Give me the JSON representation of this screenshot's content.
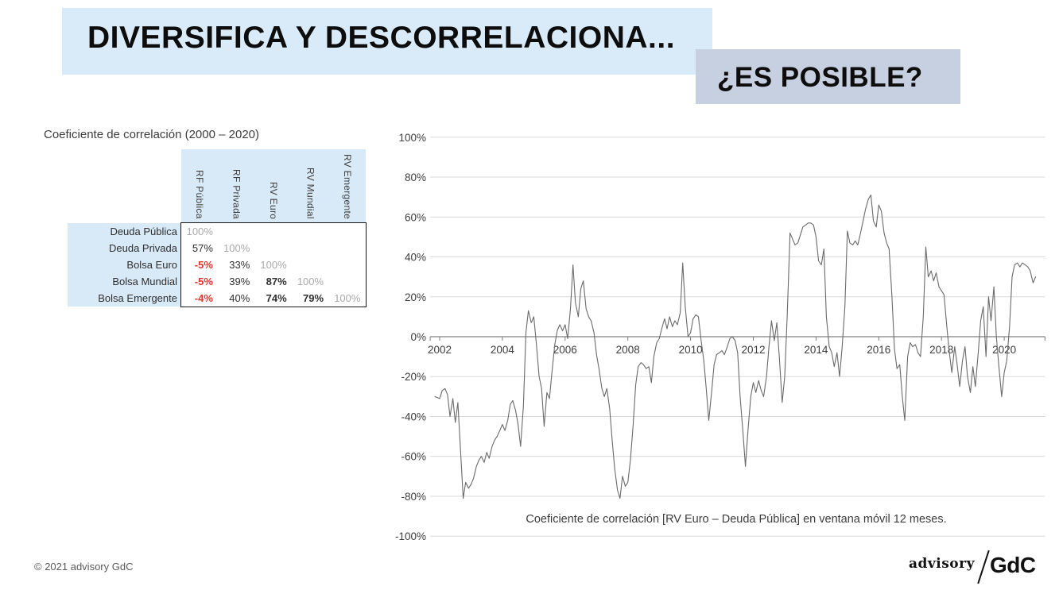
{
  "slide": {
    "title": "DIVERSIFICA Y DESCORRELACIONA...",
    "subtitle": "¿ES POSIBLE?",
    "footer_copyright": "© 2021 advisory GdC",
    "logo": {
      "advisory": "advisory",
      "gdc": "GdC"
    }
  },
  "colors": {
    "title_highlight": "#d9eaf8",
    "subtitle_highlight": "#c7d0e0",
    "table_blue": "#d8eaf8",
    "negative_red": "#e2352e",
    "diagonal_gray": "#a9a9a9",
    "line_gray": "#6a6a6a",
    "grid_gray": "#d9d9d9",
    "axis_gray": "#7f7f7f",
    "text_dark": "#3c3c3c"
  },
  "correlation_table": {
    "title": "Coeficiente de correlación (2000 – 2020)",
    "column_headers": [
      "RF Pública",
      "RF Privada",
      "RV Euro",
      "RV Mundial",
      "RV Emergente"
    ],
    "rows": [
      {
        "label": "Deuda Pública",
        "values": [
          "100%",
          "",
          "",
          "",
          ""
        ]
      },
      {
        "label": "Deuda Privada",
        "values": [
          "57%",
          "100%",
          "",
          "",
          ""
        ]
      },
      {
        "label": "Bolsa Euro",
        "values": [
          "-5%",
          "33%",
          "100%",
          "",
          ""
        ]
      },
      {
        "label": "Bolsa Mundial",
        "values": [
          "-5%",
          "39%",
          "87%",
          "100%",
          ""
        ]
      },
      {
        "label": "Bolsa Emergente",
        "values": [
          "-4%",
          "40%",
          "74%",
          "79%",
          "100%"
        ]
      }
    ]
  },
  "chart_data": {
    "type": "line",
    "title": "",
    "xlabel": "",
    "ylabel": "",
    "caption": "Coeficiente de correlación [RV Euro – Deuda Pública] en ventana móvil 12 meses.",
    "grid": true,
    "legend": "none",
    "xlim": [
      2001.85,
      2021.3
    ],
    "ylim": [
      -100,
      100
    ],
    "x_ticks": [
      2002,
      2004,
      2006,
      2008,
      2010,
      2012,
      2014,
      2016,
      2018,
      2020
    ],
    "x_tick_labels": [
      "2002",
      "2004",
      "2006",
      "2008",
      "2010",
      "2012",
      "2014",
      "2016",
      "2018",
      "2020"
    ],
    "y_ticks": [
      100,
      80,
      60,
      40,
      20,
      0,
      -20,
      -40,
      -60,
      -80,
      -100
    ],
    "y_tick_labels": [
      "100%",
      "80%",
      "60%",
      "40%",
      "20%",
      "0%",
      "-20%",
      "-40%",
      "-60%",
      "-80%",
      "-100%"
    ],
    "series": [
      {
        "name": "Coeficiente de correlación RV Euro – Deuda Pública, ventana móvil 12 meses",
        "color": "#6a6a6a",
        "points": [
          [
            2001.85,
            -30
          ],
          [
            2002.0,
            -31
          ],
          [
            2002.08,
            -27
          ],
          [
            2002.17,
            -26
          ],
          [
            2002.25,
            -29
          ],
          [
            2002.33,
            -40
          ],
          [
            2002.42,
            -31
          ],
          [
            2002.5,
            -43
          ],
          [
            2002.58,
            -33
          ],
          [
            2002.67,
            -58
          ],
          [
            2002.75,
            -81
          ],
          [
            2002.83,
            -73
          ],
          [
            2002.92,
            -76
          ],
          [
            2003.0,
            -74
          ],
          [
            2003.08,
            -71
          ],
          [
            2003.17,
            -65
          ],
          [
            2003.25,
            -62
          ],
          [
            2003.33,
            -60
          ],
          [
            2003.42,
            -63
          ],
          [
            2003.5,
            -58
          ],
          [
            2003.58,
            -61
          ],
          [
            2003.67,
            -55
          ],
          [
            2003.75,
            -52
          ],
          [
            2003.83,
            -50
          ],
          [
            2003.92,
            -47
          ],
          [
            2004.0,
            -44
          ],
          [
            2004.08,
            -47
          ],
          [
            2004.17,
            -42
          ],
          [
            2004.25,
            -34
          ],
          [
            2004.33,
            -32
          ],
          [
            2004.42,
            -37
          ],
          [
            2004.5,
            -44
          ],
          [
            2004.58,
            -55
          ],
          [
            2004.67,
            -35
          ],
          [
            2004.75,
            2
          ],
          [
            2004.83,
            13
          ],
          [
            2004.92,
            7
          ],
          [
            2005.0,
            10
          ],
          [
            2005.08,
            -3
          ],
          [
            2005.17,
            -20
          ],
          [
            2005.25,
            -26
          ],
          [
            2005.33,
            -45
          ],
          [
            2005.42,
            -28
          ],
          [
            2005.5,
            -31
          ],
          [
            2005.58,
            -18
          ],
          [
            2005.67,
            -4
          ],
          [
            2005.75,
            3
          ],
          [
            2005.83,
            6
          ],
          [
            2005.92,
            3
          ],
          [
            2006.0,
            6
          ],
          [
            2006.08,
            -1
          ],
          [
            2006.17,
            14
          ],
          [
            2006.25,
            36
          ],
          [
            2006.33,
            17
          ],
          [
            2006.42,
            10
          ],
          [
            2006.5,
            24
          ],
          [
            2006.58,
            28
          ],
          [
            2006.67,
            14
          ],
          [
            2006.75,
            10
          ],
          [
            2006.83,
            8
          ],
          [
            2006.92,
            2
          ],
          [
            2007.0,
            -9
          ],
          [
            2007.08,
            -16
          ],
          [
            2007.17,
            -26
          ],
          [
            2007.25,
            -30
          ],
          [
            2007.33,
            -26
          ],
          [
            2007.42,
            -36
          ],
          [
            2007.5,
            -52
          ],
          [
            2007.58,
            -66
          ],
          [
            2007.67,
            -77
          ],
          [
            2007.75,
            -81
          ],
          [
            2007.83,
            -70
          ],
          [
            2007.92,
            -75
          ],
          [
            2008.0,
            -73
          ],
          [
            2008.08,
            -62
          ],
          [
            2008.17,
            -44
          ],
          [
            2008.25,
            -24
          ],
          [
            2008.33,
            -15
          ],
          [
            2008.42,
            -13
          ],
          [
            2008.5,
            -14
          ],
          [
            2008.58,
            -16
          ],
          [
            2008.67,
            -15
          ],
          [
            2008.75,
            -23
          ],
          [
            2008.83,
            -10
          ],
          [
            2008.92,
            -3
          ],
          [
            2009.0,
            -1
          ],
          [
            2009.08,
            4
          ],
          [
            2009.17,
            9
          ],
          [
            2009.25,
            4
          ],
          [
            2009.33,
            10
          ],
          [
            2009.42,
            5
          ],
          [
            2009.5,
            8
          ],
          [
            2009.58,
            6
          ],
          [
            2009.67,
            12
          ],
          [
            2009.75,
            37
          ],
          [
            2009.83,
            15
          ],
          [
            2009.92,
            0
          ],
          [
            2010.0,
            2
          ],
          [
            2010.08,
            9
          ],
          [
            2010.17,
            11
          ],
          [
            2010.25,
            10
          ],
          [
            2010.33,
            -1
          ],
          [
            2010.42,
            -12
          ],
          [
            2010.5,
            -26
          ],
          [
            2010.58,
            -42
          ],
          [
            2010.67,
            -28
          ],
          [
            2010.75,
            -14
          ],
          [
            2010.83,
            -9
          ],
          [
            2010.92,
            -8
          ],
          [
            2011.0,
            -7
          ],
          [
            2011.08,
            -9
          ],
          [
            2011.17,
            -5
          ],
          [
            2011.25,
            -1
          ],
          [
            2011.33,
            0
          ],
          [
            2011.42,
            -2
          ],
          [
            2011.5,
            -8
          ],
          [
            2011.58,
            -30
          ],
          [
            2011.67,
            -48
          ],
          [
            2011.75,
            -65
          ],
          [
            2011.83,
            -47
          ],
          [
            2011.92,
            -30
          ],
          [
            2012.0,
            -23
          ],
          [
            2012.08,
            -28
          ],
          [
            2012.17,
            -22
          ],
          [
            2012.25,
            -27
          ],
          [
            2012.33,
            -30
          ],
          [
            2012.42,
            -20
          ],
          [
            2012.5,
            -5
          ],
          [
            2012.58,
            8
          ],
          [
            2012.67,
            -2
          ],
          [
            2012.75,
            7
          ],
          [
            2012.83,
            -10
          ],
          [
            2012.92,
            -33
          ],
          [
            2013.0,
            -20
          ],
          [
            2013.08,
            10
          ],
          [
            2013.17,
            52
          ],
          [
            2013.25,
            49
          ],
          [
            2013.33,
            46
          ],
          [
            2013.42,
            47
          ],
          [
            2013.5,
            51
          ],
          [
            2013.58,
            55
          ],
          [
            2013.67,
            56
          ],
          [
            2013.75,
            57
          ],
          [
            2013.83,
            57
          ],
          [
            2013.92,
            56
          ],
          [
            2014.0,
            50
          ],
          [
            2014.08,
            38
          ],
          [
            2014.17,
            36
          ],
          [
            2014.25,
            44
          ],
          [
            2014.33,
            10
          ],
          [
            2014.42,
            -5
          ],
          [
            2014.5,
            -8
          ],
          [
            2014.58,
            -15
          ],
          [
            2014.67,
            -8
          ],
          [
            2014.75,
            -20
          ],
          [
            2014.83,
            -6
          ],
          [
            2014.92,
            15
          ],
          [
            2015.0,
            53
          ],
          [
            2015.08,
            47
          ],
          [
            2015.17,
            46
          ],
          [
            2015.25,
            48
          ],
          [
            2015.33,
            46
          ],
          [
            2015.42,
            52
          ],
          [
            2015.5,
            58
          ],
          [
            2015.58,
            64
          ],
          [
            2015.67,
            69
          ],
          [
            2015.75,
            71
          ],
          [
            2015.83,
            58
          ],
          [
            2015.92,
            55
          ],
          [
            2016.0,
            66
          ],
          [
            2016.08,
            63
          ],
          [
            2016.17,
            52
          ],
          [
            2016.25,
            47
          ],
          [
            2016.33,
            44
          ],
          [
            2016.42,
            20
          ],
          [
            2016.5,
            -6
          ],
          [
            2016.58,
            -16
          ],
          [
            2016.67,
            -14
          ],
          [
            2016.75,
            -30
          ],
          [
            2016.83,
            -42
          ],
          [
            2016.92,
            -10
          ],
          [
            2017.0,
            -3
          ],
          [
            2017.08,
            -5
          ],
          [
            2017.17,
            -4
          ],
          [
            2017.25,
            -8
          ],
          [
            2017.33,
            -10
          ],
          [
            2017.42,
            10
          ],
          [
            2017.5,
            45
          ],
          [
            2017.58,
            30
          ],
          [
            2017.67,
            33
          ],
          [
            2017.75,
            28
          ],
          [
            2017.83,
            32
          ],
          [
            2017.92,
            25
          ],
          [
            2018.0,
            23
          ],
          [
            2018.08,
            21
          ],
          [
            2018.17,
            5
          ],
          [
            2018.25,
            -8
          ],
          [
            2018.33,
            -18
          ],
          [
            2018.42,
            -5
          ],
          [
            2018.5,
            -14
          ],
          [
            2018.58,
            -25
          ],
          [
            2018.67,
            -12
          ],
          [
            2018.75,
            -5
          ],
          [
            2018.83,
            -20
          ],
          [
            2018.92,
            -28
          ],
          [
            2019.0,
            -15
          ],
          [
            2019.08,
            -25
          ],
          [
            2019.17,
            -8
          ],
          [
            2019.25,
            8
          ],
          [
            2019.33,
            15
          ],
          [
            2019.42,
            -10
          ],
          [
            2019.5,
            20
          ],
          [
            2019.58,
            8
          ],
          [
            2019.67,
            25
          ],
          [
            2019.75,
            0
          ],
          [
            2019.83,
            -15
          ],
          [
            2019.92,
            -30
          ],
          [
            2020.0,
            -18
          ],
          [
            2020.08,
            -12
          ],
          [
            2020.17,
            5
          ],
          [
            2020.25,
            30
          ],
          [
            2020.33,
            36
          ],
          [
            2020.42,
            37
          ],
          [
            2020.5,
            35
          ],
          [
            2020.58,
            37
          ],
          [
            2020.67,
            36
          ],
          [
            2020.75,
            35
          ],
          [
            2020.83,
            33
          ],
          [
            2020.92,
            27
          ],
          [
            2021.0,
            30
          ]
        ]
      }
    ]
  }
}
